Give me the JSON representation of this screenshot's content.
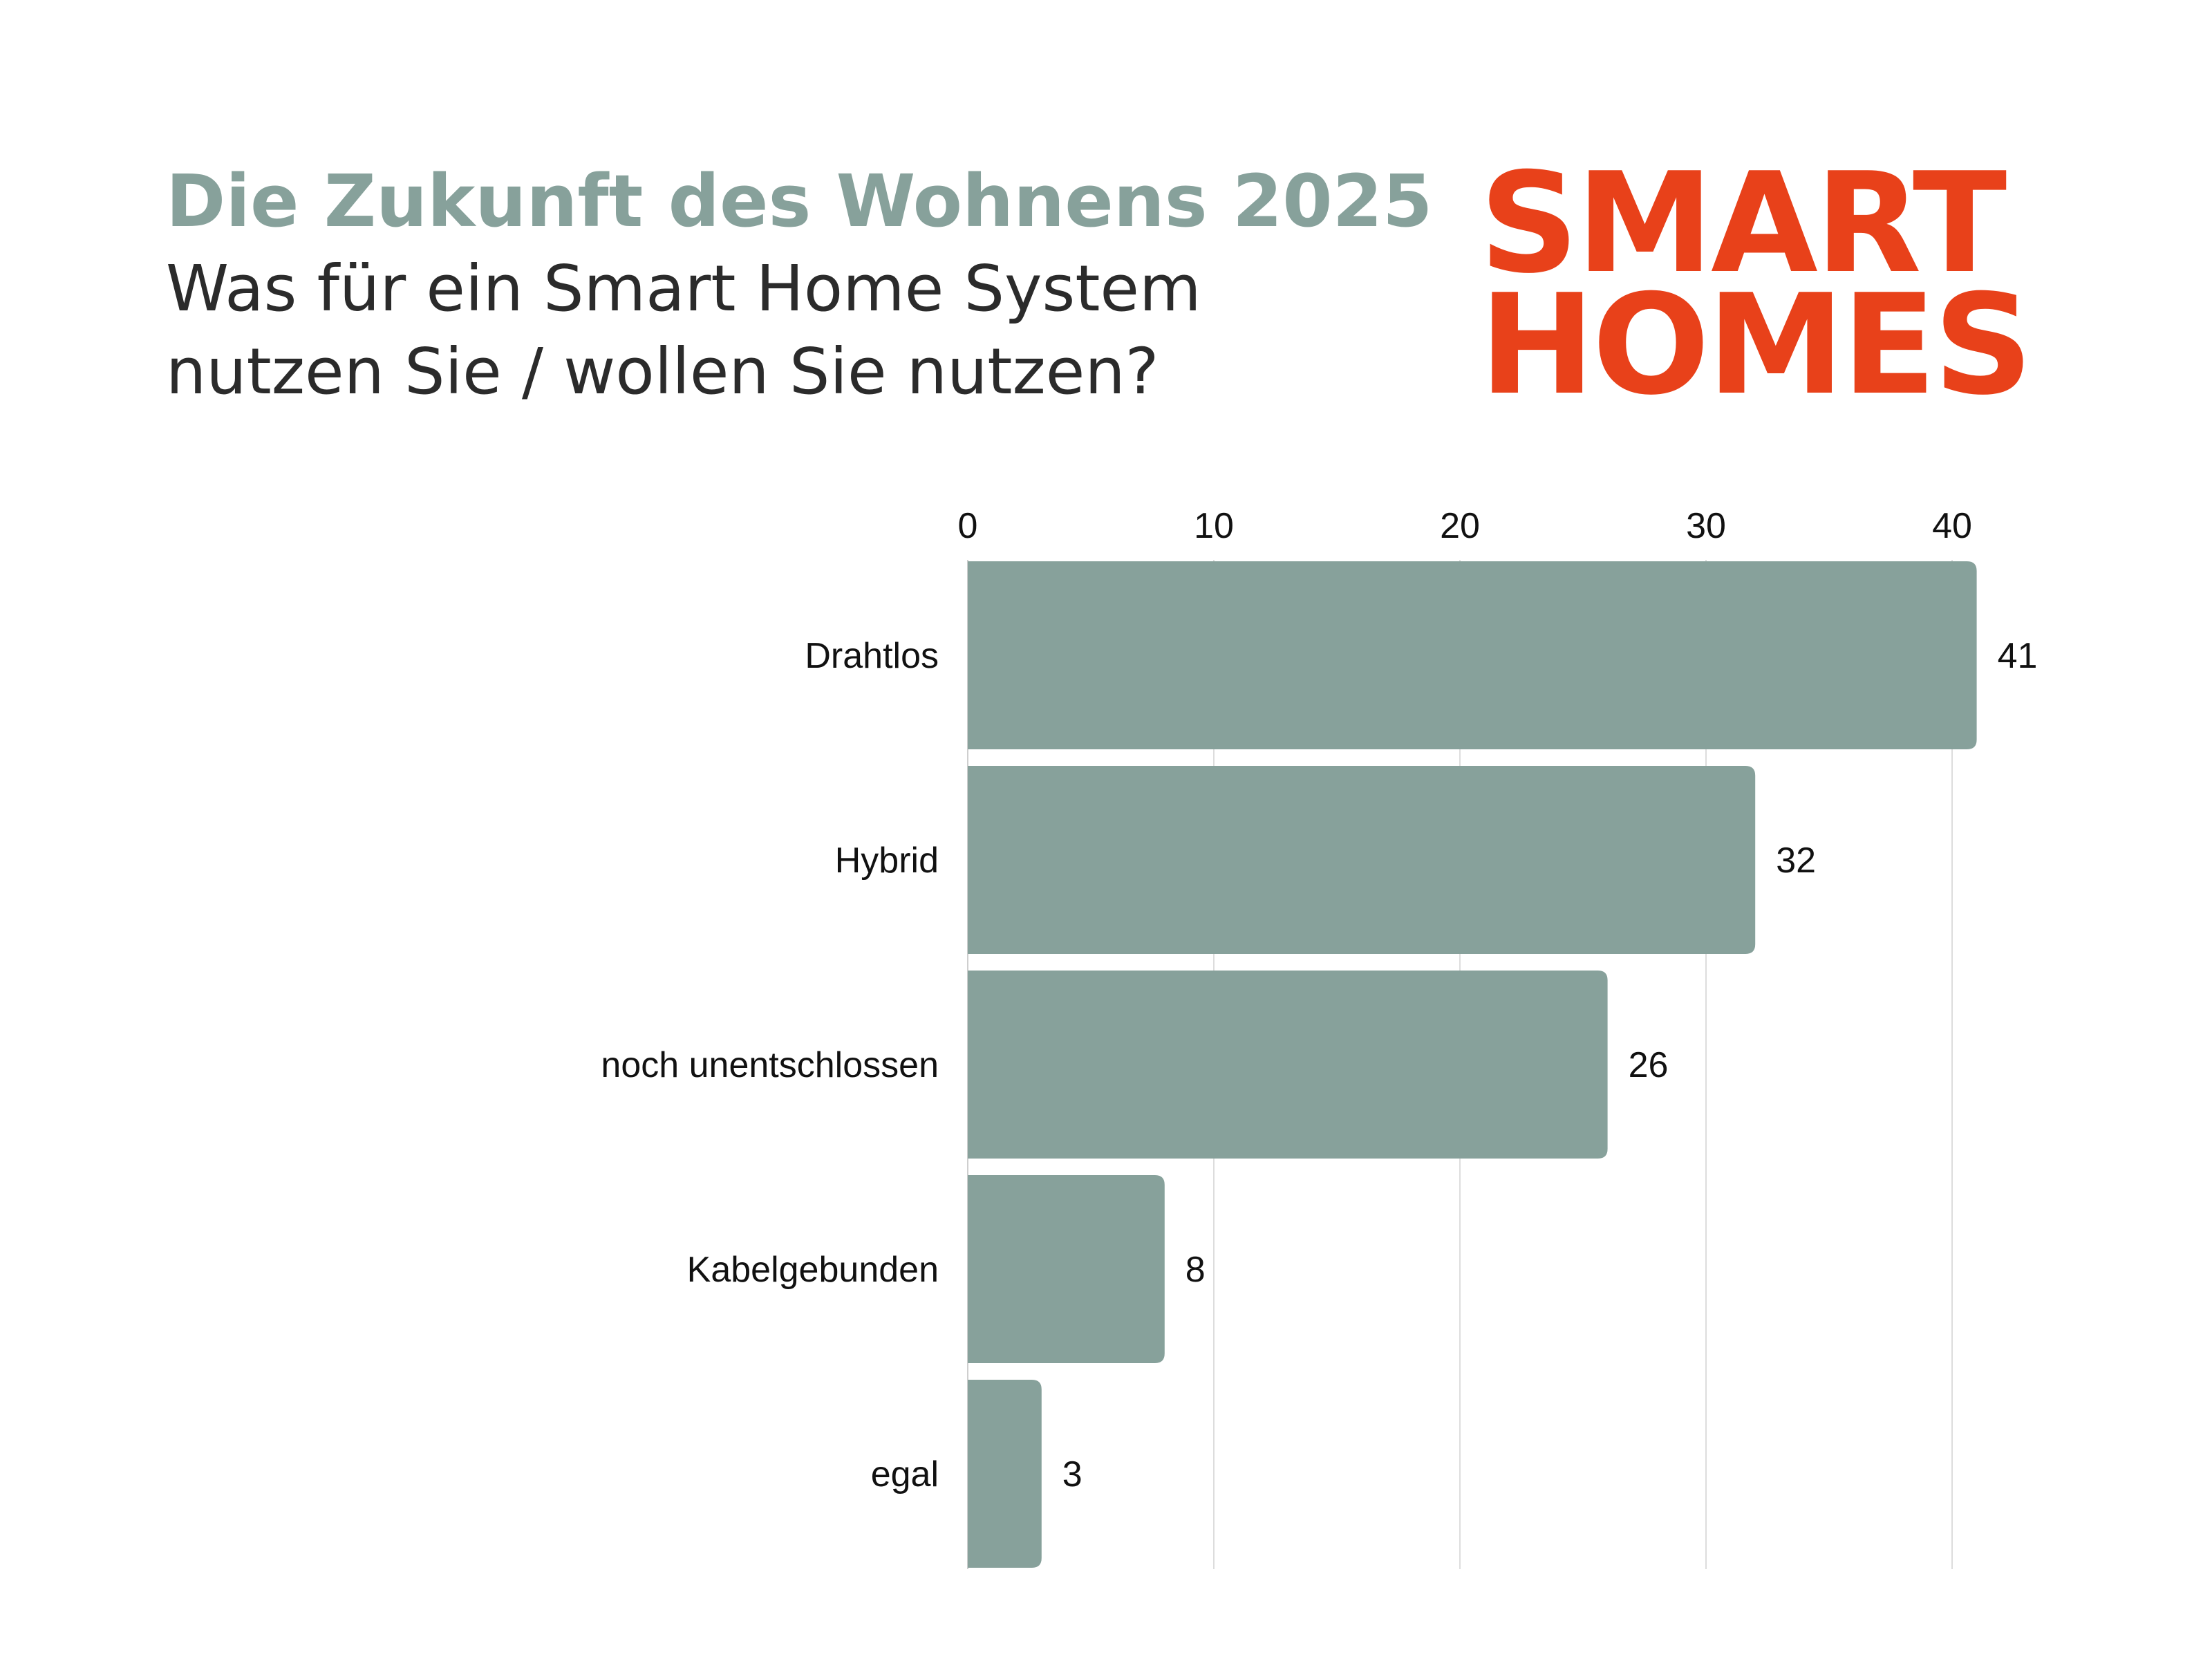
{
  "chart_data": {
    "type": "bar",
    "orientation": "horizontal",
    "title": "Die Zukunft des Wohnens 2025",
    "subtitle": "Was für ein Smart Home System nutzen Sie / wollen Sie nutzen?",
    "categories": [
      "Drahtlos",
      "Hybrid",
      "noch unentschlossen",
      "Kabelgebunden",
      "egal"
    ],
    "values": [
      41,
      32,
      26,
      8,
      3
    ],
    "xlabel": "",
    "ylabel": "",
    "xlim": [
      0,
      44
    ],
    "ticks": [
      0,
      10,
      20,
      30,
      40
    ],
    "tick_labels": [
      "0",
      "10",
      "20",
      "30",
      "40"
    ],
    "axis_position": "top",
    "grid": true,
    "legend": "none",
    "data_labels": true,
    "bar_color": "#87a19b",
    "grid_color": "#dddddd"
  },
  "logo": {
    "line1": "SMART",
    "line2": "HOMES",
    "color": "#e8411a"
  },
  "colors": {
    "title": "#87a19b",
    "subtitle": "#2b2b2b",
    "text": "#111111"
  }
}
